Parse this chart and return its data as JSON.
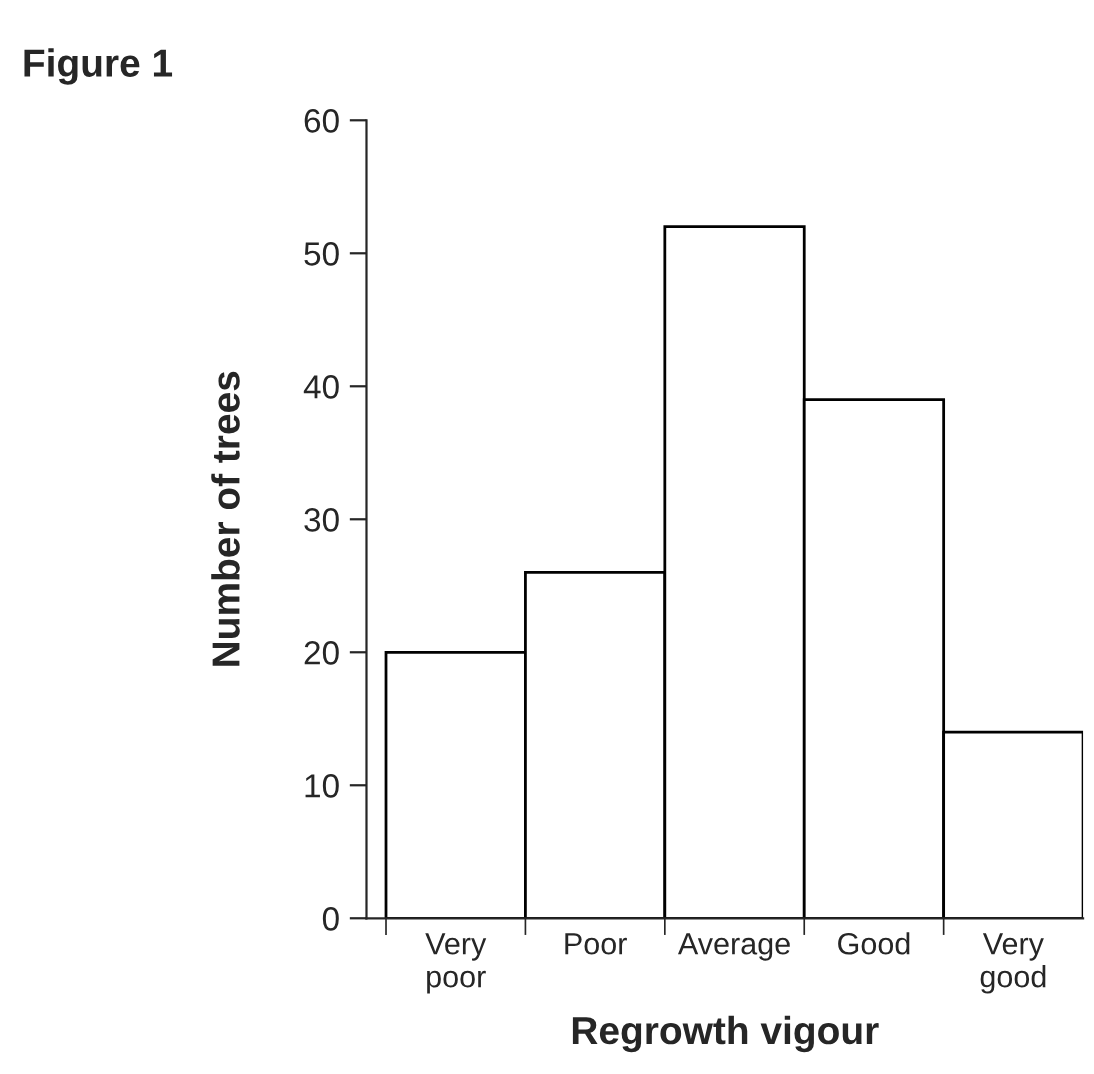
{
  "chart_data": {
    "type": "bar",
    "title": "Figure 1",
    "xlabel": "Regrowth vigour",
    "ylabel": "Number of trees",
    "categories": [
      "Very\npoor",
      "Poor",
      "Average",
      "Good",
      "Very\ngood"
    ],
    "values": [
      20,
      26,
      52,
      39,
      14
    ],
    "color": "#ffffff",
    "ylim": [
      0,
      60
    ],
    "yticks": [
      0,
      10,
      20,
      30,
      40,
      50,
      60
    ],
    "grid": false,
    "legend": false
  }
}
